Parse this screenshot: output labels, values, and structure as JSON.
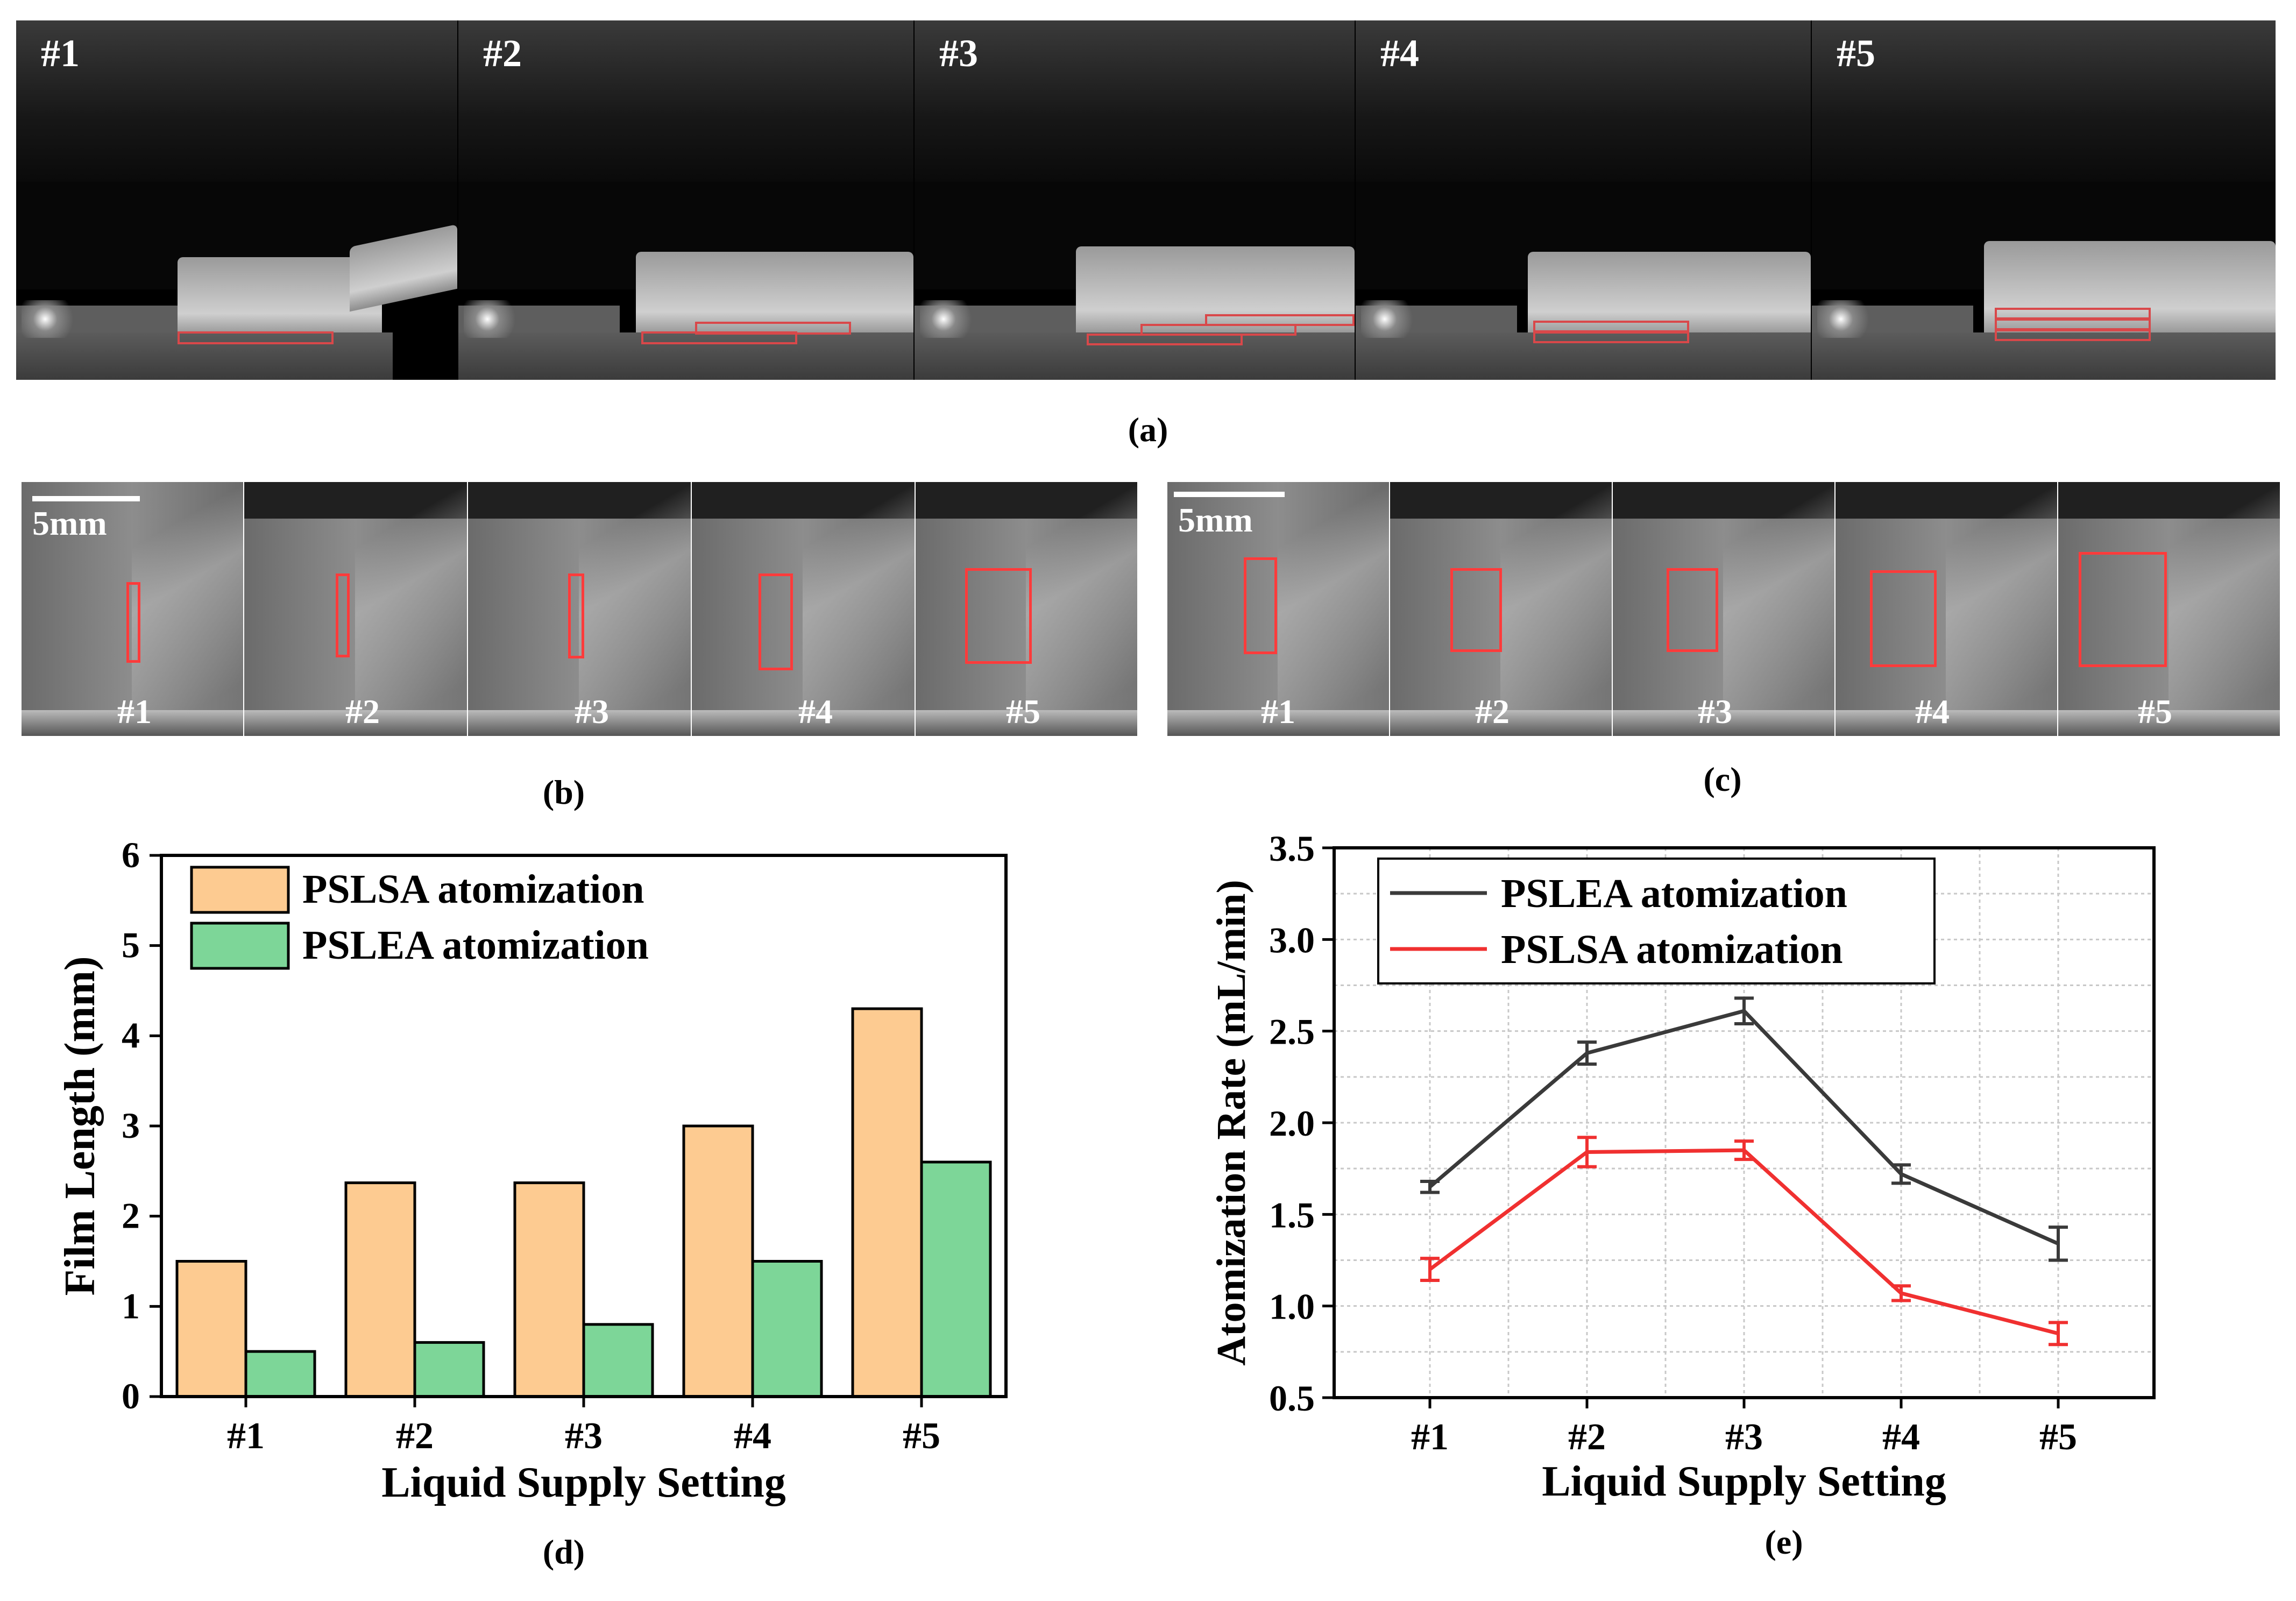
{
  "panel_a": {
    "frames": [
      "#1",
      "#2",
      "#3",
      "#4",
      "#5"
    ],
    "caption": "(a)"
  },
  "panel_b": {
    "scale": "5mm",
    "frames": [
      "#1",
      "#2",
      "#3",
      "#4",
      "#5"
    ],
    "caption": "(b)"
  },
  "panel_c": {
    "scale": "5mm",
    "frames": [
      "#1",
      "#2",
      "#3",
      "#4",
      "#5"
    ],
    "caption": "(c)"
  },
  "panel_d": {
    "caption": "(d)"
  },
  "panel_e": {
    "caption": "(e)"
  },
  "chart_data": [
    {
      "id": "d",
      "type": "bar",
      "xlabel": "Liquid Supply Setting",
      "ylabel": "Film Length (mm)",
      "categories": [
        "#1",
        "#2",
        "#3",
        "#4",
        "#5"
      ],
      "ylim": [
        0,
        6
      ],
      "yticks": [
        0,
        1,
        2,
        3,
        4,
        5,
        6
      ],
      "legend_position": "top-left",
      "series": [
        {
          "name": "PSLSA atomization",
          "color": "#fdcb91",
          "values": [
            1.5,
            2.37,
            2.37,
            3.0,
            4.3
          ]
        },
        {
          "name": "PSLEA atomization",
          "color": "#7dd698",
          "values": [
            0.5,
            0.6,
            0.8,
            1.5,
            2.6
          ]
        }
      ]
    },
    {
      "id": "e",
      "type": "line",
      "xlabel": "Liquid Supply Setting",
      "ylabel": "Atomization Rate (mL/min)",
      "categories": [
        "#1",
        "#2",
        "#3",
        "#4",
        "#5"
      ],
      "ylim": [
        0.5,
        3.5
      ],
      "yticks": [
        "0.5",
        "1.0",
        "1.5",
        "2.0",
        "2.5",
        "3.0",
        "3.5"
      ],
      "grid": true,
      "legend_position": "top-left",
      "series": [
        {
          "name": "PSLEA atomization",
          "color": "#3a3a3a",
          "values": [
            1.65,
            2.38,
            2.61,
            1.72,
            1.34
          ],
          "errors": [
            0.03,
            0.06,
            0.07,
            0.05,
            0.09
          ]
        },
        {
          "name": "PSLSA atomization",
          "color": "#f03030",
          "values": [
            1.2,
            1.84,
            1.85,
            1.07,
            0.85
          ],
          "errors": [
            0.06,
            0.08,
            0.05,
            0.04,
            0.06
          ]
        }
      ]
    }
  ]
}
